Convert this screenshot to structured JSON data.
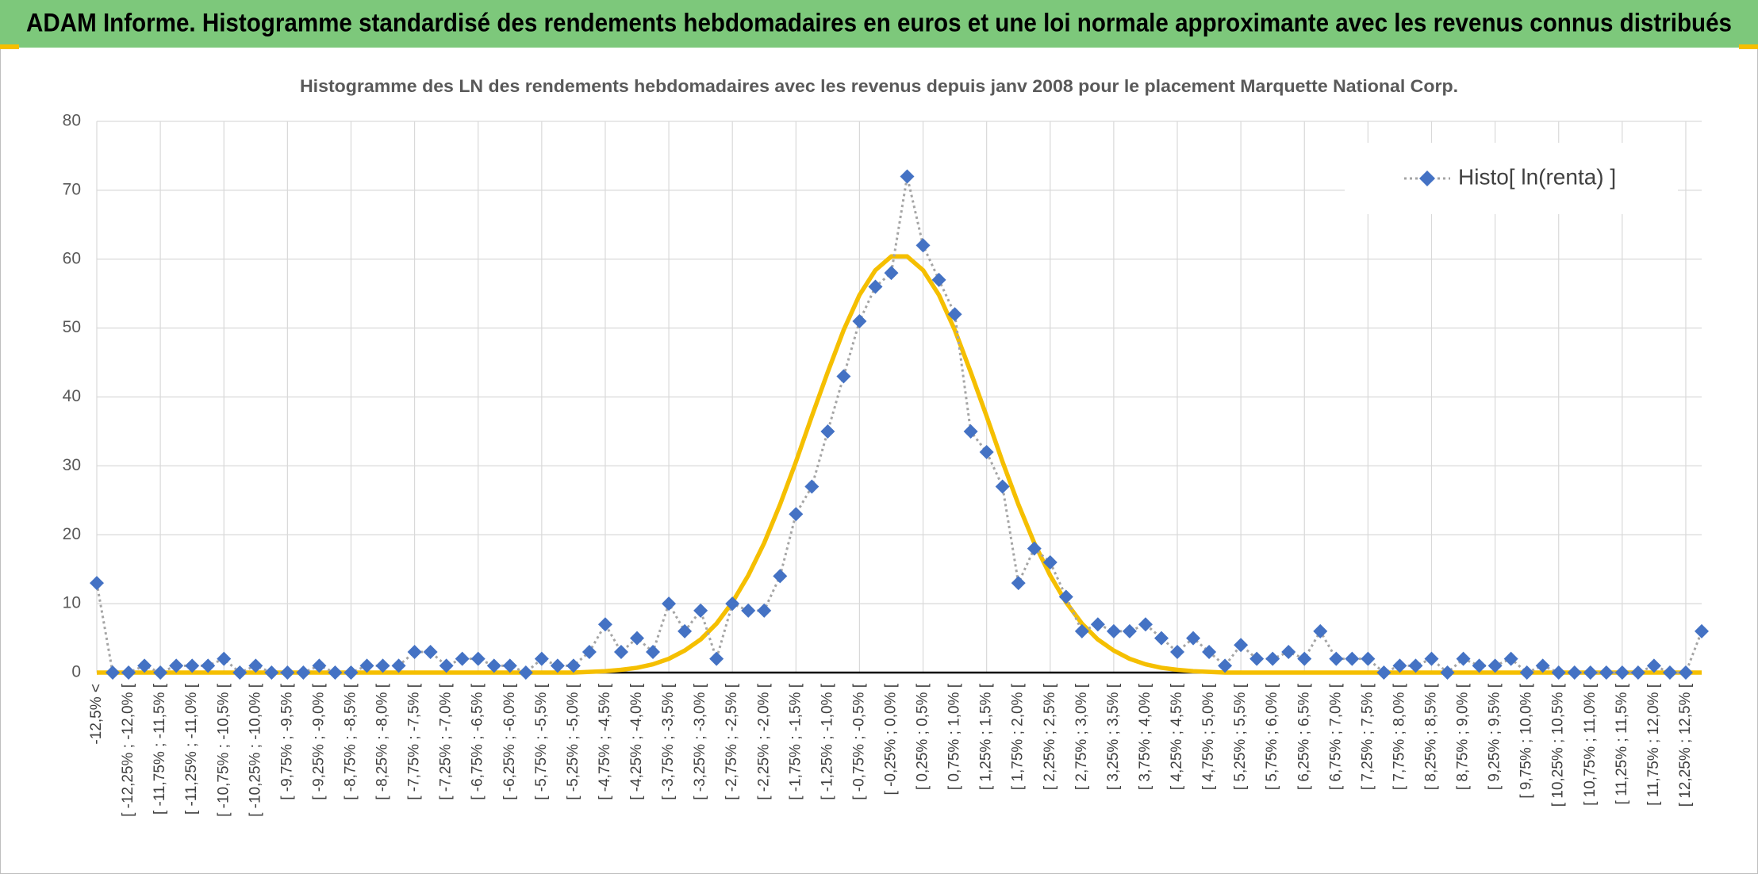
{
  "header": {
    "title": "ADAM Informe. Histogramme standardisé des rendements hebdomadaires en euros et une loi normale approximante avec les revenus connus distribués"
  },
  "chart_data": {
    "type": "line",
    "title": "Histogramme des LN des rendements hebdomadaires avec les revenus depuis janv 2008 pour le placement Marquette National Corp.",
    "categories": [
      "-12,5% <",
      null,
      "[ -12,25% ; -12,0% [",
      null,
      "[ -11,75% ; -11,5% [",
      null,
      "[ -11,25% ; -11,0% [",
      null,
      "[ -10,75% ; -10,5% [",
      null,
      "[ -10,25% ; -10,0% [",
      null,
      "[ -9,75% ; -9,5% [",
      null,
      "[ -9,25% ; -9,0% [",
      null,
      "[ -8,75% ; -8,5% [",
      null,
      "[ -8,25% ; -8,0% [",
      null,
      "[ -7,75% ; -7,5% [",
      null,
      "[ -7,25% ; -7,0% [",
      null,
      "[ -6,75% ; -6,5% [",
      null,
      "[ -6,25% ; -6,0% [",
      null,
      "[ -5,75% ; -5,5% [",
      null,
      "[ -5,25% ; -5,0% [",
      null,
      "[ -4,75% ; -4,5% [",
      null,
      "[ -4,25% ; -4,0% [",
      null,
      "[ -3,75% ; -3,5% [",
      null,
      "[ -3,25% ; -3,0% [",
      null,
      "[ -2,75% ; -2,5% [",
      null,
      "[ -2,25% ; -2,0% [",
      null,
      "[ -1,75% ; -1,5% [",
      null,
      "[ -1,25% ; -1,0% [",
      null,
      "[ -0,75% ; -0,5% [",
      null,
      "[ -0,25% ; 0,0% [",
      null,
      "[ 0,25% ; 0,5% [",
      null,
      "[ 0,75% ; 1,0% [",
      null,
      "[ 1,25% ; 1,5% [",
      null,
      "[ 1,75% ; 2,0% [",
      null,
      "[ 2,25% ; 2,5% [",
      null,
      "[ 2,75% ; 3,0% [",
      null,
      "[ 3,25% ; 3,5% [",
      null,
      "[ 3,75% ; 4,0% [",
      null,
      "[ 4,25% ; 4,5% [",
      null,
      "[ 4,75% ; 5,0% [",
      null,
      "[ 5,25% ; 5,5% [",
      null,
      "[ 5,75% ; 6,0% [",
      null,
      "[ 6,25% ; 6,5% [",
      null,
      "[ 6,75% ; 7,0% [",
      null,
      "[ 7,25% ; 7,5% [",
      null,
      "[ 7,75% ; 8,0% [",
      null,
      "[ 8,25% ; 8,5% [",
      null,
      "[ 8,75% ; 9,0% [",
      null,
      "[ 9,25% ; 9,5% [",
      null,
      "[ 9,75% ; 10,0% [",
      null,
      "[ 10,25% ; 10,5% [",
      null,
      "[ 10,75% ; 11,0% [",
      null,
      "[ 11,25% ; 11,5% [",
      null,
      "[ 11,75% ; 12,0% [",
      null,
      "[ 12,25% ; 12,5% [",
      null
    ],
    "series": [
      {
        "name": "Histo[ ln(renta) ]",
        "color": "#4472c4",
        "line_color": "#a5a5a5",
        "line_style": "dotted",
        "marker": "diamond",
        "values": [
          13,
          0,
          0,
          1,
          0,
          1,
          1,
          1,
          2,
          0,
          1,
          0,
          0,
          0,
          1,
          0,
          0,
          1,
          1,
          1,
          3,
          3,
          1,
          2,
          2,
          1,
          1,
          0,
          2,
          1,
          1,
          3,
          7,
          3,
          5,
          3,
          10,
          6,
          9,
          2,
          10,
          9,
          9,
          14,
          23,
          27,
          35,
          43,
          51,
          56,
          58,
          72,
          62,
          57,
          52,
          35,
          32,
          27,
          13,
          18,
          16,
          11,
          6,
          7,
          6,
          6,
          7,
          5,
          3,
          5,
          3,
          1,
          4,
          2,
          2,
          3,
          2,
          6,
          2,
          2,
          2,
          0,
          1,
          1,
          2,
          0,
          2,
          1,
          1,
          2,
          0,
          1,
          0,
          0,
          0,
          0,
          0,
          0,
          1,
          0,
          0,
          6
        ]
      },
      {
        "color": "#f5bf00",
        "line_style": "solid",
        "values": [
          0,
          0,
          0,
          0,
          0,
          0,
          0,
          0,
          0,
          0,
          0,
          0,
          0,
          0,
          0,
          0,
          0,
          0,
          0,
          0,
          0,
          0,
          0,
          0,
          0,
          0,
          0,
          0,
          0,
          0,
          0,
          0.1,
          0.2,
          0.4,
          0.7,
          1.2,
          2.0,
          3.2,
          4.8,
          7.1,
          10.2,
          14.1,
          18.8,
          24.4,
          30.6,
          37.2,
          43.6,
          49.7,
          54.8,
          58.4,
          60.4,
          60.4,
          58.4,
          54.8,
          49.7,
          43.6,
          37.2,
          30.6,
          24.4,
          18.8,
          14.1,
          10.2,
          7.1,
          4.8,
          3.2,
          2.0,
          1.2,
          0.7,
          0.4,
          0.2,
          0.1,
          0,
          0,
          0,
          0,
          0,
          0,
          0,
          0,
          0,
          0,
          0,
          0,
          0,
          0,
          0,
          0,
          0,
          0,
          0,
          0,
          0,
          0,
          0,
          0,
          0,
          0,
          0,
          0,
          0,
          0,
          0
        ]
      }
    ],
    "ylim": [
      0,
      80
    ],
    "yticks": [
      0,
      10,
      20,
      30,
      40,
      50,
      60,
      70,
      80
    ],
    "grid": true,
    "legend": "upper right"
  }
}
